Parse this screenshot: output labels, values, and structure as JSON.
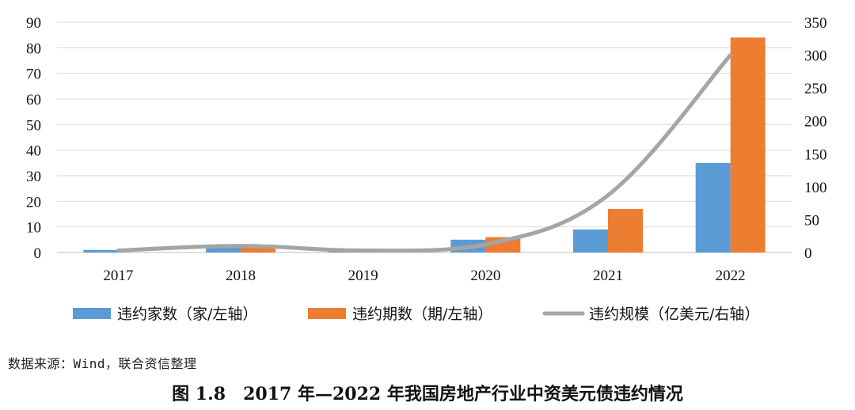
{
  "chart_data": {
    "type": "bar",
    "categories": [
      "2017",
      "2018",
      "2019",
      "2020",
      "2021",
      "2022"
    ],
    "series": [
      {
        "name": "违约家数（家/左轴）",
        "kind": "bar",
        "axis": "left",
        "color": "#5B9BD5",
        "values": [
          1,
          3,
          1,
          5,
          9,
          35
        ]
      },
      {
        "name": "违约期数（期/左轴）",
        "kind": "bar",
        "axis": "left",
        "color": "#ED7D31",
        "values": [
          0,
          3,
          1,
          6,
          17,
          84
        ]
      },
      {
        "name": "违约规模（亿美元/右轴）",
        "kind": "line",
        "axis": "right",
        "color": "#A5A5A5",
        "values": [
          3,
          10,
          3,
          12,
          87,
          300
        ]
      }
    ],
    "left_axis": {
      "min": 0,
      "max": 90,
      "step": 10,
      "ticks": [
        "0",
        "10",
        "20",
        "30",
        "40",
        "50",
        "60",
        "70",
        "80",
        "90"
      ]
    },
    "right_axis": {
      "min": 0,
      "max": 350,
      "step": 50,
      "ticks": [
        "0",
        "50",
        "100",
        "150",
        "200",
        "250",
        "300",
        "350"
      ]
    },
    "grid": true,
    "legend_position": "bottom"
  },
  "source_note": "数据来源：Wind，联合资信整理",
  "caption": "图 1.8　2017 年—2022 年我国房地产行业中资美元债违约情况"
}
